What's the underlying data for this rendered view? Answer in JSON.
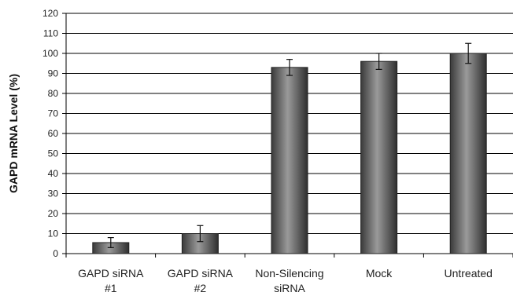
{
  "chart_data": {
    "type": "bar",
    "title": "",
    "xlabel": "",
    "ylabel": "GAPD mRNA Level (%)",
    "ylim": [
      0,
      120
    ],
    "yticks": [
      0,
      10,
      20,
      30,
      40,
      50,
      60,
      70,
      80,
      90,
      100,
      110,
      120
    ],
    "grid": true,
    "categories": [
      [
        "GAPD siRNA",
        "#1"
      ],
      [
        "GAPD siRNA",
        "#2"
      ],
      [
        "Non-Silencing",
        "siRNA"
      ],
      [
        "Mock"
      ],
      [
        "Untreated"
      ]
    ],
    "values": [
      5.5,
      10,
      93,
      96,
      100
    ],
    "errors": [
      2.5,
      4,
      4,
      4,
      5
    ],
    "colors": {
      "bar": "#5a5a5a",
      "bar_highlight": "#9a9a9a",
      "grid": "#000000",
      "text": "#222222"
    }
  }
}
